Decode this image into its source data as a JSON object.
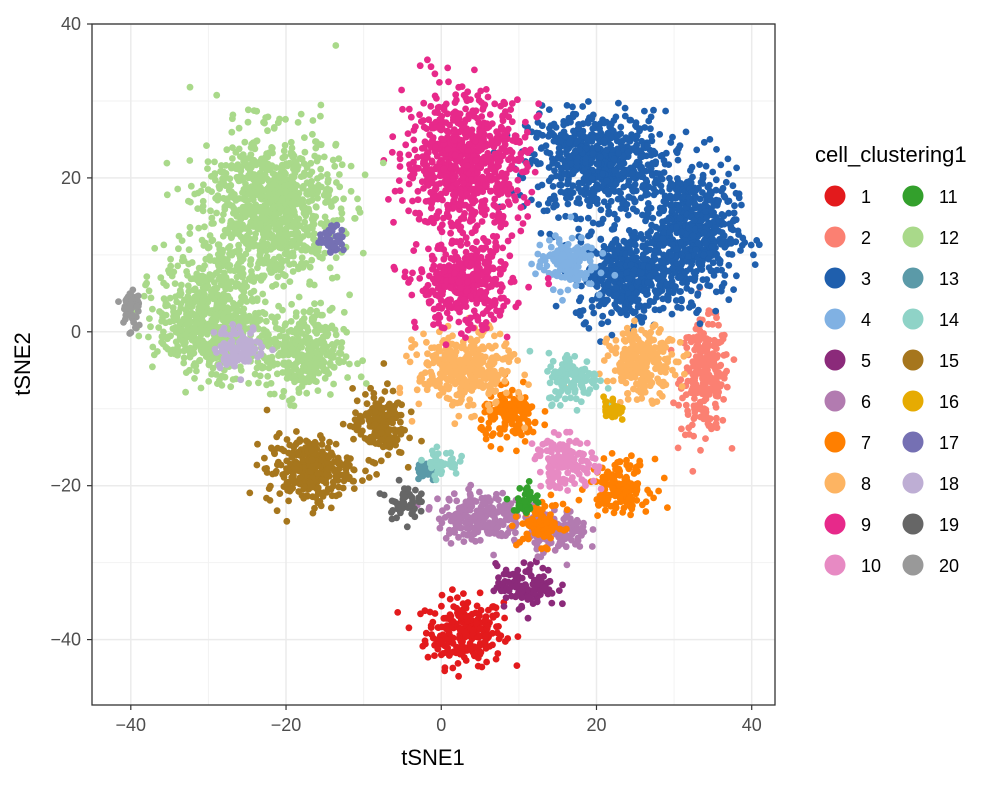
{
  "chart_data": {
    "type": "scatter",
    "title": "",
    "xlabel": "tSNE1",
    "ylabel": "tSNE2",
    "xlim": [
      -45,
      43
    ],
    "ylim": [
      -48.5,
      40
    ],
    "x_ticks": [
      -40,
      -20,
      0,
      20,
      40
    ],
    "y_ticks": [
      -40,
      -20,
      0,
      20,
      40
    ],
    "x_tick_labels": [
      "−40",
      "−20",
      "0",
      "20",
      "40"
    ],
    "y_tick_labels": [
      "−40",
      "−20",
      "0",
      "20",
      "40"
    ],
    "grid": true,
    "legend": {
      "title": "cell_clustering1",
      "placement": "right",
      "columns": 2
    },
    "series": [
      {
        "name": "1",
        "color": "#E31A1C",
        "clusters": [
          [
            3,
            -39,
            4.5,
            4
          ]
        ]
      },
      {
        "name": "2",
        "color": "#FB8072",
        "clusters": [
          [
            34,
            -6,
            2.8,
            6.5
          ]
        ]
      },
      {
        "name": "3",
        "color": "#1F5FAD",
        "clusters": [
          [
            20,
            22,
            8,
            6
          ],
          [
            32,
            13,
            5.5,
            7.5
          ],
          [
            24,
            7,
            6,
            5
          ]
        ]
      },
      {
        "name": "4",
        "color": "#80B1E3",
        "clusters": [
          [
            16,
            9,
            3.5,
            3
          ]
        ]
      },
      {
        "name": "5",
        "color": "#8B2A7A",
        "clusters": [
          [
            11,
            -33,
            3.5,
            2.5
          ]
        ]
      },
      {
        "name": "6",
        "color": "#B27BB0",
        "clusters": [
          [
            5,
            -24,
            5,
            3
          ],
          [
            15,
            -26,
            3.5,
            2.5
          ]
        ]
      },
      {
        "name": "7",
        "color": "#FF7F00",
        "clusters": [
          [
            9,
            -11,
            3.5,
            3
          ],
          [
            23,
            -20,
            3.5,
            3
          ],
          [
            13,
            -25,
            2.5,
            2.5
          ]
        ]
      },
      {
        "name": "8",
        "color": "#FDB462",
        "clusters": [
          [
            3,
            -5,
            5.5,
            4.5
          ],
          [
            26,
            -4,
            4,
            4
          ]
        ]
      },
      {
        "name": "9",
        "color": "#E7298A",
        "clusters": [
          [
            3,
            22,
            7,
            8
          ],
          [
            3,
            6,
            5.5,
            5
          ]
        ]
      },
      {
        "name": "10",
        "color": "#E78AC3",
        "clusters": [
          [
            16,
            -17,
            3.5,
            3
          ]
        ]
      },
      {
        "name": "11",
        "color": "#33A02C",
        "clusters": [
          [
            11,
            -22,
            1.5,
            1.8
          ]
        ]
      },
      {
        "name": "12",
        "color": "#A9D98A",
        "clusters": [
          [
            -22,
            16,
            8,
            9
          ],
          [
            -30,
            2,
            6,
            7
          ],
          [
            -18,
            -3,
            5,
            5
          ]
        ]
      },
      {
        "name": "13",
        "color": "#5B9AA8",
        "clusters": [
          [
            -2,
            -18,
            1.5,
            1.2
          ]
        ]
      },
      {
        "name": "14",
        "color": "#8FD3C7",
        "clusters": [
          [
            17,
            -6,
            3,
            3
          ],
          [
            0,
            -17,
            2,
            1.5
          ]
        ]
      },
      {
        "name": "15",
        "color": "#A6761D",
        "clusters": [
          [
            -17,
            -18,
            5,
            4
          ],
          [
            -8,
            -12,
            3,
            4
          ]
        ]
      },
      {
        "name": "16",
        "color": "#E6AB02",
        "clusters": [
          [
            22,
            -10,
            1,
            1.5
          ]
        ]
      },
      {
        "name": "17",
        "color": "#7570B3",
        "clusters": [
          [
            -14,
            12,
            1.5,
            1.5
          ]
        ]
      },
      {
        "name": "18",
        "color": "#BEAED4",
        "clusters": [
          [
            -26,
            -2,
            3,
            2.5
          ]
        ]
      },
      {
        "name": "19",
        "color": "#666666",
        "clusters": [
          [
            -5,
            -22,
            1.8,
            2
          ]
        ]
      },
      {
        "name": "20",
        "color": "#999999",
        "clusters": [
          [
            -40,
            3,
            1.2,
            3
          ]
        ]
      }
    ]
  }
}
